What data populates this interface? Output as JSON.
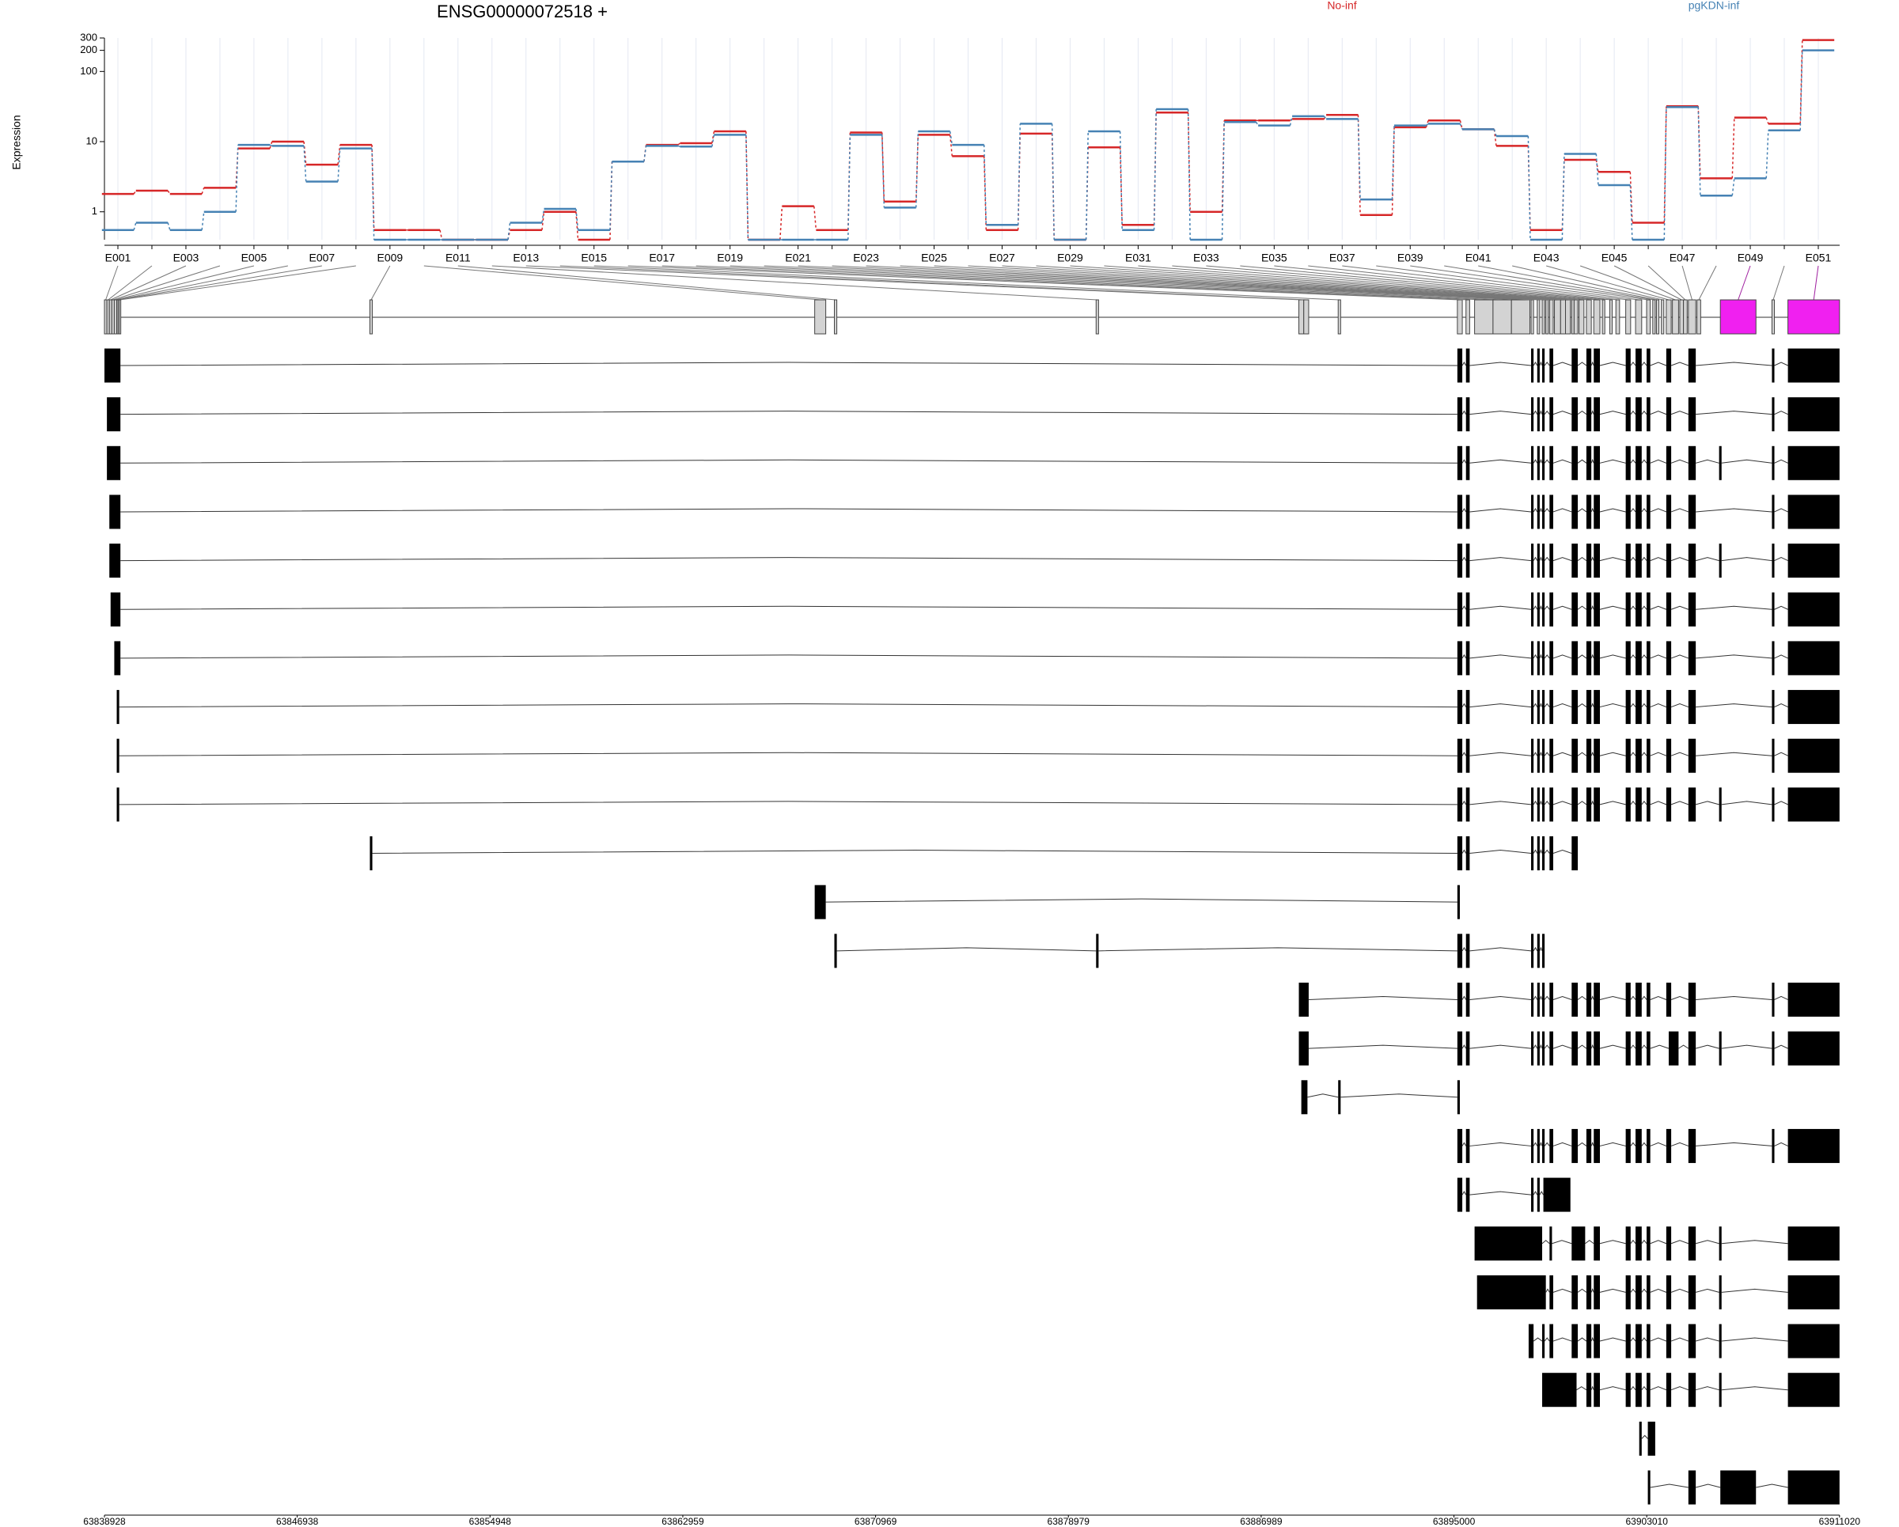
{
  "chart_data": {
    "type": "step",
    "title": "ENSG00000072518 +",
    "y_label": "Expression",
    "log_y": true,
    "categories": [
      "E001",
      null,
      "E003",
      null,
      "E005",
      null,
      "E007",
      null,
      "E009",
      null,
      "E011",
      null,
      "E013",
      null,
      "E015",
      null,
      "E017",
      null,
      "E019",
      null,
      "E021",
      null,
      "E023",
      null,
      "E025",
      null,
      "E027",
      null,
      "E029",
      null,
      "E031",
      null,
      "E033",
      null,
      "E035",
      null,
      "E037",
      null,
      "E039",
      null,
      "E041",
      null,
      "E043",
      null,
      "E045",
      null,
      "E047",
      null,
      "E049",
      null,
      "E051"
    ],
    "series": [
      {
        "name": "No-inf",
        "color": "#d62728",
        "values": [
          1.8,
          2.0,
          1.8,
          2.2,
          8,
          10,
          4.7,
          9,
          0.55,
          0.55,
          0.4,
          0.4,
          0.55,
          1.0,
          0.4,
          5.2,
          9,
          9.5,
          14,
          0.4,
          1.2,
          0.55,
          13.5,
          1.4,
          12.5,
          6.2,
          0.55,
          13,
          0.4,
          8.3,
          0.65,
          26,
          1.0,
          20,
          20,
          21,
          24,
          0.9,
          16,
          20,
          15,
          8.7,
          0.55,
          5.5,
          3.7,
          0.7,
          32,
          3.0,
          22,
          18,
          280
        ]
      },
      {
        "name": "pgKDN-inf",
        "color": "#4682b4",
        "values": [
          0.55,
          0.7,
          0.55,
          1.0,
          9,
          8.7,
          2.7,
          8,
          0.4,
          0.4,
          0.4,
          0.4,
          0.7,
          1.1,
          0.55,
          5.2,
          8.7,
          8.5,
          12.5,
          0.4,
          0.4,
          0.4,
          12.5,
          1.15,
          14,
          9,
          0.65,
          18,
          0.4,
          14,
          0.55,
          29,
          0.4,
          19,
          17,
          23,
          21,
          1.5,
          17,
          18,
          15,
          12,
          0.4,
          6.7,
          2.4,
          0.4,
          31,
          1.7,
          3.0,
          14.5,
          200
        ]
      }
    ],
    "ylim": [
      0.4,
      300
    ],
    "yticks": [
      1,
      10,
      100,
      200,
      300
    ],
    "x2lim": [
      63838928,
      63911020
    ],
    "x2ticks": [
      63838928,
      63846938,
      63854948,
      63862959,
      63870969,
      63878979,
      63886989,
      63895000,
      63903010,
      63911020
    ]
  }
}
